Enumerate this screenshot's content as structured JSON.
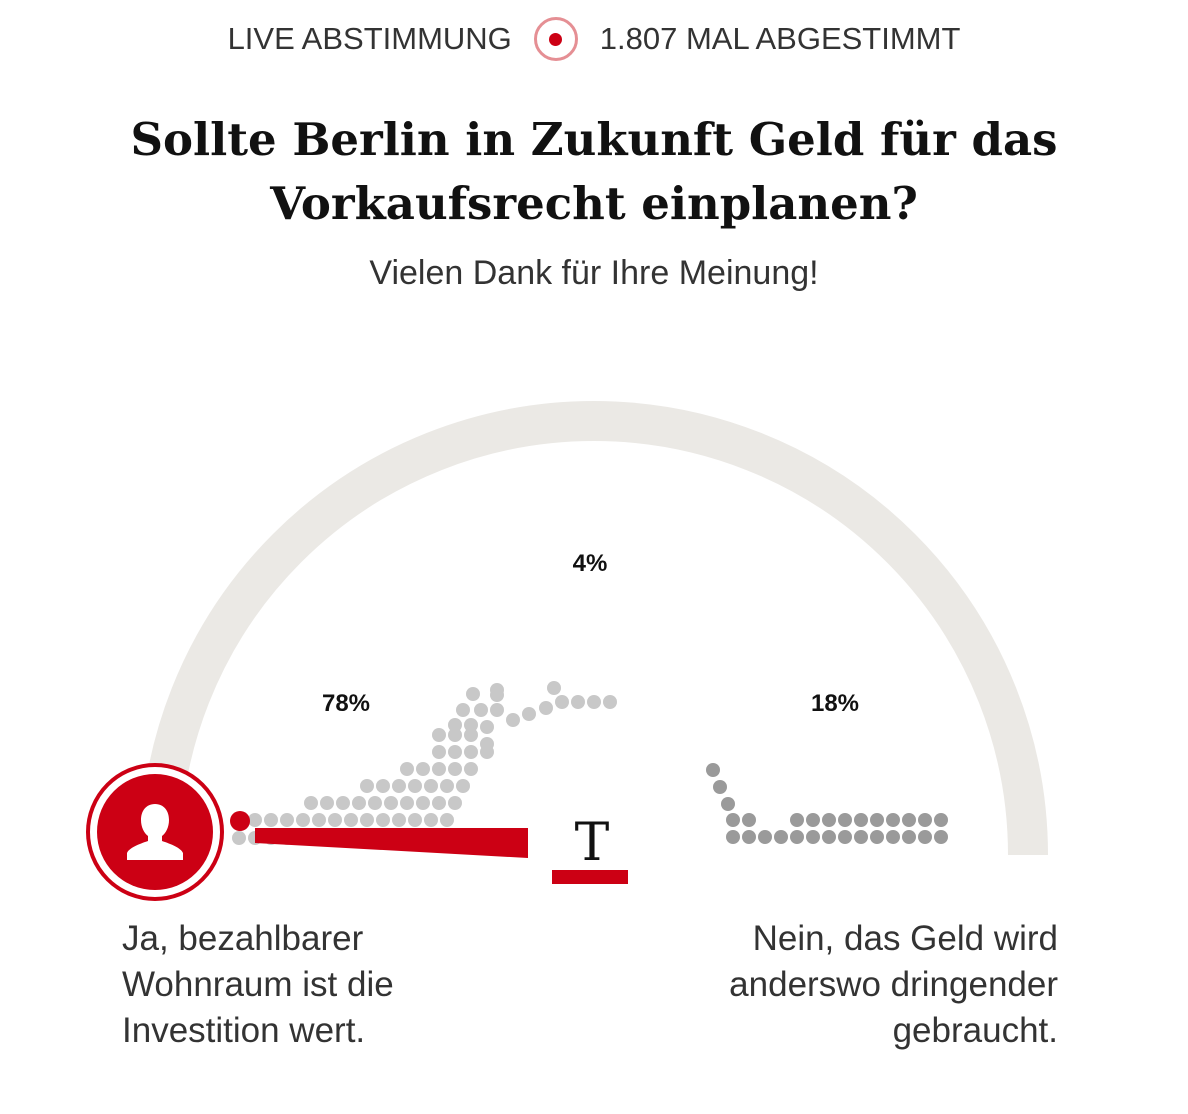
{
  "header": {
    "live_label": "LIVE ABSTIMMUNG",
    "vote_count_label": "1.807 MAL ABGESTIMMT"
  },
  "question": {
    "title": "Sollte Berlin in Zukunft Geld für das Vorkaufsrecht einplanen?",
    "subtitle": "Vielen Dank für Ihre Meinung!"
  },
  "results": {
    "yes_pct": "78%",
    "neutral_pct": "4%",
    "no_pct": "18%",
    "yes_answer": "Ja, bezahlbarer Wohnraum ist die Investition wert.",
    "no_answer": "Nein, das Geld wird anderswo dringender gebraucht.",
    "pointer_value": 0.02
  },
  "logo": {
    "letter": "T"
  },
  "colors": {
    "accent": "#cc0014",
    "track": "#ebe9e5",
    "dots_light": "#c8c8c8",
    "dots_dark": "#9a9a9a"
  },
  "icons": {
    "live": "live-record-icon",
    "user": "user-silhouette-icon"
  }
}
